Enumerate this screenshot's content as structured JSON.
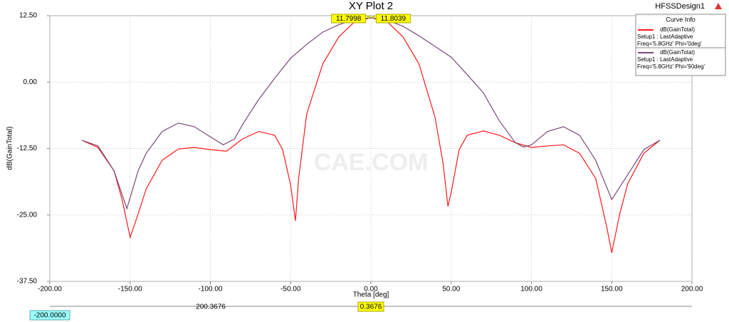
{
  "chart_data": {
    "type": "line",
    "title": "XY Plot 2",
    "design": "HFSSDesign1",
    "legend_title": "Curve Info",
    "x_label": "Theta [deg]",
    "y_label": "dB(GainTotal)",
    "watermark": "CAE.COM",
    "xlim": [
      -200,
      200
    ],
    "ylim": [
      -37.5,
      12.5
    ],
    "xticks": [
      {
        "value": -200,
        "label": "-200.00"
      },
      {
        "value": -150,
        "label": "-150.00"
      },
      {
        "value": -100,
        "label": "-100.00"
      },
      {
        "value": -50,
        "label": "-50.00"
      },
      {
        "value": 0,
        "label": "0.00"
      },
      {
        "value": 50,
        "label": "50.00"
      },
      {
        "value": 100,
        "label": "100.00"
      },
      {
        "value": 150,
        "label": "150.00"
      },
      {
        "value": 200,
        "label": "200.00"
      }
    ],
    "yticks": [
      {
        "value": -37.5,
        "label": "-37.50"
      },
      {
        "value": -25,
        "label": "-25.00"
      },
      {
        "value": -12.5,
        "label": "-12.50"
      },
      {
        "value": 0,
        "label": "0.00"
      },
      {
        "value": 12.5,
        "label": "12.50"
      }
    ],
    "grid": true,
    "series": [
      {
        "name": "dB(GainTotal)",
        "setup": "Setup1 : LastAdaptive",
        "condition": "Freq='5.8GHz' Phi='0deg'",
        "color": "#ff1a1a",
        "x": [
          -180,
          -170,
          -160,
          -155,
          -150,
          -145,
          -140,
          -130,
          -120,
          -110,
          -100,
          -90,
          -80,
          -70,
          -60,
          -55,
          -50,
          -47,
          -45,
          -40,
          -30,
          -20,
          -10,
          0,
          10,
          20,
          30,
          40,
          45,
          48,
          50,
          55,
          60,
          70,
          80,
          90,
          100,
          110,
          120,
          130,
          140,
          147,
          150,
          155,
          160,
          170,
          180
        ],
        "values": [
          -10.95,
          -12.3,
          -16.7,
          -22.1,
          -29.2,
          -24.8,
          -20.1,
          -14.7,
          -12.6,
          -12.3,
          -12.7,
          -13,
          -10.7,
          -9.3,
          -10,
          -12.7,
          -19.4,
          -26.1,
          -18.1,
          -6,
          3.4,
          8.5,
          11.4,
          12.1,
          11.4,
          8.5,
          3.4,
          -6.7,
          -15.4,
          -23.4,
          -20.7,
          -12.7,
          -10,
          -9.2,
          -10,
          -11.4,
          -12.3,
          -12,
          -11.8,
          -13.4,
          -18.1,
          -27.4,
          -32.1,
          -24.8,
          -19.1,
          -13.4,
          -10.95
        ]
      },
      {
        "name": "dB(GainTotal)",
        "setup": "Setup1 : LastAdaptive",
        "condition": "Freq='5.8GHz' Phi='90deg'",
        "color": "#7a4a78",
        "x": [
          -180,
          -170,
          -160,
          -152,
          -145,
          -140,
          -130,
          -120,
          -110,
          -100,
          -92,
          -85,
          -80,
          -70,
          -60,
          -50,
          -40,
          -30,
          -20,
          -10,
          0,
          10,
          20,
          30,
          40,
          50,
          60,
          70,
          80,
          90,
          95,
          100,
          110,
          120,
          130,
          140,
          150,
          160,
          170,
          180
        ],
        "values": [
          -10.95,
          -12,
          -16.7,
          -23.8,
          -16.7,
          -13.4,
          -9.3,
          -7.7,
          -8.4,
          -10.3,
          -11.8,
          -10.7,
          -8,
          -3.3,
          0.7,
          4.5,
          7.1,
          9.4,
          10.8,
          11.8,
          12.1,
          11.7,
          10.5,
          8.7,
          6.7,
          4.7,
          1.4,
          -2,
          -7.3,
          -11.4,
          -12.2,
          -11.8,
          -9.3,
          -8.4,
          -10,
          -14.7,
          -22.1,
          -17.4,
          -12.7,
          -10.95
        ]
      }
    ],
    "markers": [
      {
        "x": -1.5,
        "value": 11.7998
      },
      {
        "x": 1.5,
        "value": 11.8039
      }
    ],
    "cursor": {
      "start": "-200.0000",
      "span": "200.3676",
      "end": "0.3676"
    }
  }
}
